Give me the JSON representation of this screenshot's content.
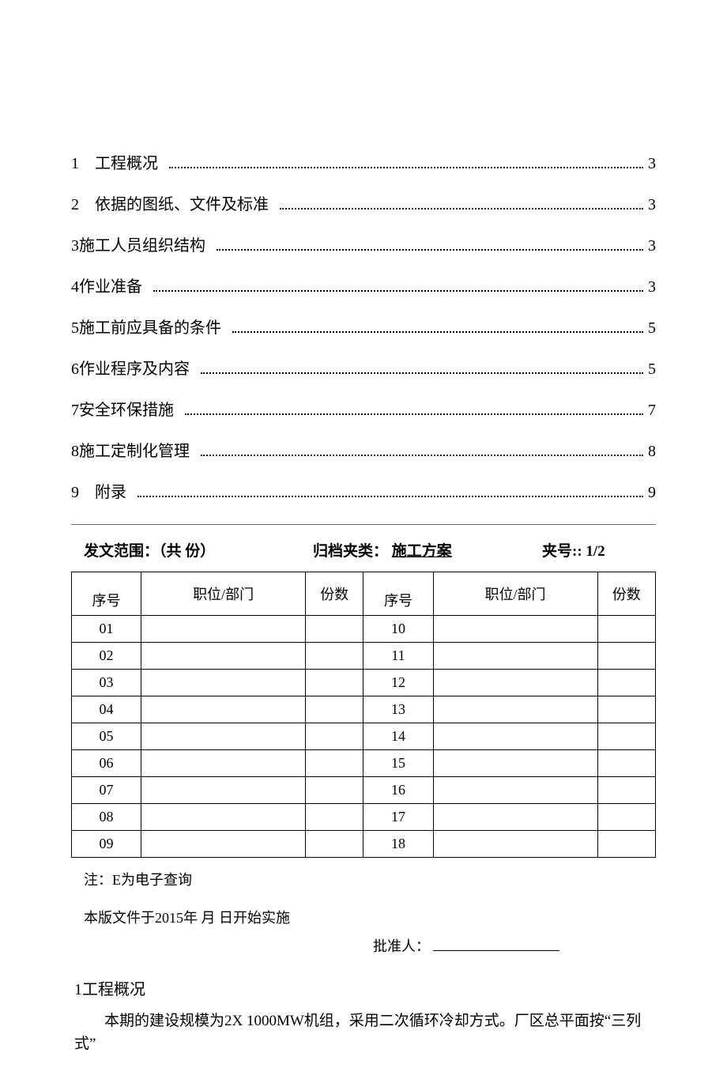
{
  "toc": [
    {
      "num": "1",
      "title": "工程概况",
      "page": "3",
      "spaced": true
    },
    {
      "num": "2",
      "title": "依据的图纸、文件及标准",
      "page": "3",
      "spaced": true
    },
    {
      "num": "3",
      "title": "施工人员组织结构",
      "page": "3",
      "spaced": false
    },
    {
      "num": "4",
      "title": "作业准备",
      "page": "3",
      "spaced": false
    },
    {
      "num": "5",
      "title": "施工前应具备的条件",
      "page": "5",
      "spaced": false
    },
    {
      "num": "6",
      "title": "作业程序及内容",
      "page": "5",
      "spaced": false
    },
    {
      "num": "7",
      "title": "安全环保措施",
      "page": "7",
      "spaced": false
    },
    {
      "num": "8",
      "title": "施工定制化管理",
      "page": "8",
      "spaced": false
    },
    {
      "num": "9",
      "title": "附录",
      "page": "9",
      "spaced": true
    }
  ],
  "meta": {
    "scope_label": "发文范围：（共  份）",
    "archive_label": "归档夹类：",
    "archive_value": "施工方案",
    "folder_label": "夹号:: 1/2"
  },
  "table": {
    "headers": {
      "seq": "序号",
      "dept": "职位/部门",
      "copies": "份数"
    },
    "left_seq": [
      "01",
      "02",
      "03",
      "04",
      "05",
      "06",
      "07",
      "08",
      "09"
    ],
    "right_seq": [
      "10",
      "11",
      "12",
      "13",
      "14",
      "15",
      "16",
      "17",
      "18"
    ]
  },
  "note_text": "注：E为电子查询",
  "impl_text": "本版文件于2015年  月  日开始实施",
  "approve_label": "批准人：",
  "section1_heading": "1工程概况",
  "section1_body": "本期的建设规模为2X 1000MW机组，采用二次循环冷却方式。厂区总平面按“三列式”"
}
